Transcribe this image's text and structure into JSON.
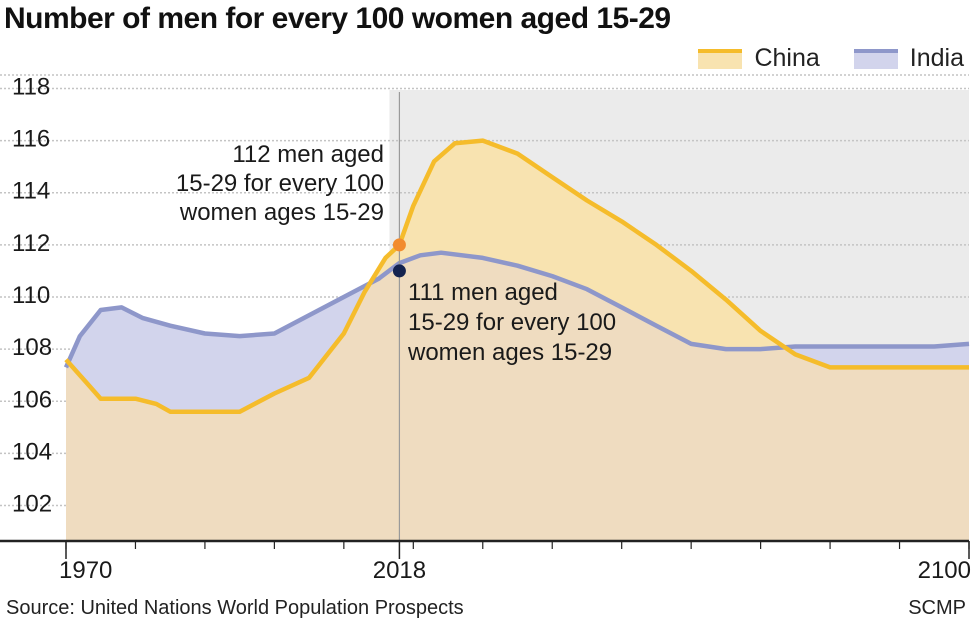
{
  "title": "Number of men for every 100 women aged 15-29",
  "legend": [
    {
      "name": "China",
      "line": "#f5bc2b",
      "fill": "#f8e3b0"
    },
    {
      "name": "India",
      "line": "#8e97ca",
      "fill": "#d2d4ec"
    }
  ],
  "footer": {
    "source": "Source: United Nations World Population Prospects",
    "credit": "SCMP"
  },
  "annotations": {
    "china": [
      "112 men aged",
      "15-29 for every 100",
      "women ages 15-29"
    ],
    "india": [
      "111 men aged",
      "15-29 for every 100",
      "women ages 15-29"
    ]
  },
  "colors": {
    "china_dot": "#f28b2e",
    "india_dot": "#14234f",
    "projection_bg": "#ebebeb",
    "overlap_fill": "#efdcc0"
  },
  "chart_data": {
    "type": "area",
    "title": "Number of men for every 100 women aged 15-29",
    "xlim": [
      1970,
      2100
    ],
    "ylim": [
      100,
      118.5
    ],
    "x_ticks": [
      1970,
      2018,
      2100
    ],
    "y_ticks": [
      102,
      104,
      106,
      108,
      110,
      112,
      114,
      116,
      118
    ],
    "projection_start": 2018,
    "grid": "horizontal",
    "legend_position": "top-right",
    "series": [
      {
        "name": "China",
        "x": [
          1970,
          1972,
          1975,
          1980,
          1983,
          1985,
          1990,
          1995,
          2000,
          2005,
          2010,
          2013,
          2016,
          2018,
          2020,
          2023,
          2026,
          2030,
          2035,
          2040,
          2045,
          2050,
          2055,
          2060,
          2065,
          2070,
          2075,
          2080,
          2085,
          2090,
          2095,
          2100
        ],
        "y": [
          107.6,
          107.0,
          106.1,
          106.1,
          105.9,
          105.6,
          105.6,
          105.6,
          106.3,
          106.9,
          108.6,
          110.2,
          111.5,
          112.0,
          113.5,
          115.2,
          115.9,
          116.0,
          115.5,
          114.6,
          113.7,
          112.9,
          112.0,
          111.0,
          109.9,
          108.7,
          107.8,
          107.3,
          107.3,
          107.3,
          107.3,
          107.3
        ],
        "marker": {
          "x": 2018,
          "y": 112
        }
      },
      {
        "name": "India",
        "x": [
          1970,
          1972,
          1975,
          1978,
          1981,
          1985,
          1990,
          1995,
          2000,
          2005,
          2010,
          2015,
          2018,
          2021,
          2024,
          2030,
          2035,
          2040,
          2045,
          2050,
          2055,
          2060,
          2065,
          2070,
          2075,
          2080,
          2085,
          2090,
          2095,
          2100
        ],
        "y": [
          107.3,
          108.5,
          109.5,
          109.6,
          109.2,
          108.9,
          108.6,
          108.5,
          108.6,
          109.3,
          110.0,
          110.7,
          111.3,
          111.6,
          111.7,
          111.5,
          111.2,
          110.8,
          110.3,
          109.6,
          108.9,
          108.2,
          108.0,
          108.0,
          108.1,
          108.1,
          108.1,
          108.1,
          108.1,
          108.2
        ],
        "marker": {
          "x": 2018,
          "y": 111
        }
      }
    ]
  }
}
